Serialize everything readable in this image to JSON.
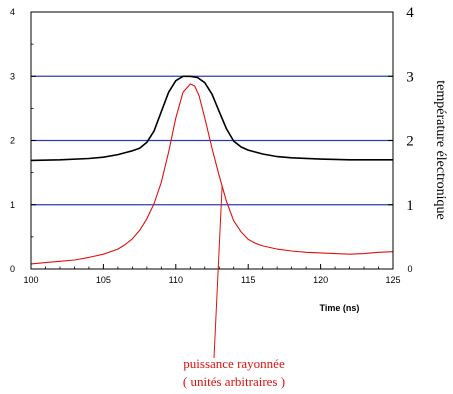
{
  "chart_data": {
    "type": "line",
    "title": "",
    "xlabel": "Time (ns)",
    "ylabel_left": "",
    "ylabel_right": "température électronique",
    "xlim": [
      100,
      125
    ],
    "ylim_left": [
      0,
      4
    ],
    "ylim_right": [
      0,
      4
    ],
    "xticks": [
      "100",
      "105",
      "110",
      "115",
      "120",
      "125"
    ],
    "yticks_left": [
      "0",
      "1",
      "2",
      "3",
      "4"
    ],
    "yticks_right": [
      "0",
      "1",
      "2",
      "3",
      "4"
    ],
    "gridlines_y": [
      1,
      2,
      3
    ],
    "grid_color": "#2a3fb0",
    "series": [
      {
        "color": "#000000",
        "x": [
          100,
          102,
          104,
          105,
          106,
          107,
          107.5,
          108,
          108.5,
          109,
          109.5,
          110,
          110.5,
          111,
          111.5,
          112,
          112.5,
          113,
          113.5,
          114,
          114.5,
          115,
          116,
          117,
          118,
          120,
          122,
          124,
          125
        ],
        "y": [
          1.69,
          1.7,
          1.72,
          1.74,
          1.78,
          1.84,
          1.88,
          1.97,
          2.15,
          2.45,
          2.75,
          2.93,
          3.0,
          3.0,
          2.98,
          2.9,
          2.72,
          2.45,
          2.18,
          1.99,
          1.9,
          1.85,
          1.79,
          1.75,
          1.73,
          1.71,
          1.7,
          1.7,
          1.7
        ]
      },
      {
        "color": "#e01010",
        "x": [
          100,
          101,
          102,
          103,
          104,
          105,
          106,
          106.5,
          107,
          107.5,
          108,
          108.5,
          109,
          109.5,
          110,
          110.5,
          111,
          111.3,
          111.6,
          112,
          112.5,
          113,
          113.5,
          114,
          114.5,
          115,
          115.5,
          116,
          117,
          118,
          119,
          120,
          121,
          122,
          123,
          124,
          125
        ],
        "y": [
          0.08,
          0.1,
          0.12,
          0.14,
          0.18,
          0.23,
          0.31,
          0.38,
          0.47,
          0.6,
          0.78,
          1.02,
          1.35,
          1.82,
          2.35,
          2.75,
          2.88,
          2.85,
          2.7,
          2.35,
          1.88,
          1.45,
          1.05,
          0.75,
          0.58,
          0.46,
          0.4,
          0.36,
          0.31,
          0.28,
          0.26,
          0.25,
          0.24,
          0.23,
          0.24,
          0.26,
          0.27
        ]
      }
    ],
    "annotation": {
      "line1": "puissance rayonnée",
      "line2": "( unités arbitraires )",
      "points_to_x": 113.2,
      "points_to_y": 1.3
    }
  }
}
